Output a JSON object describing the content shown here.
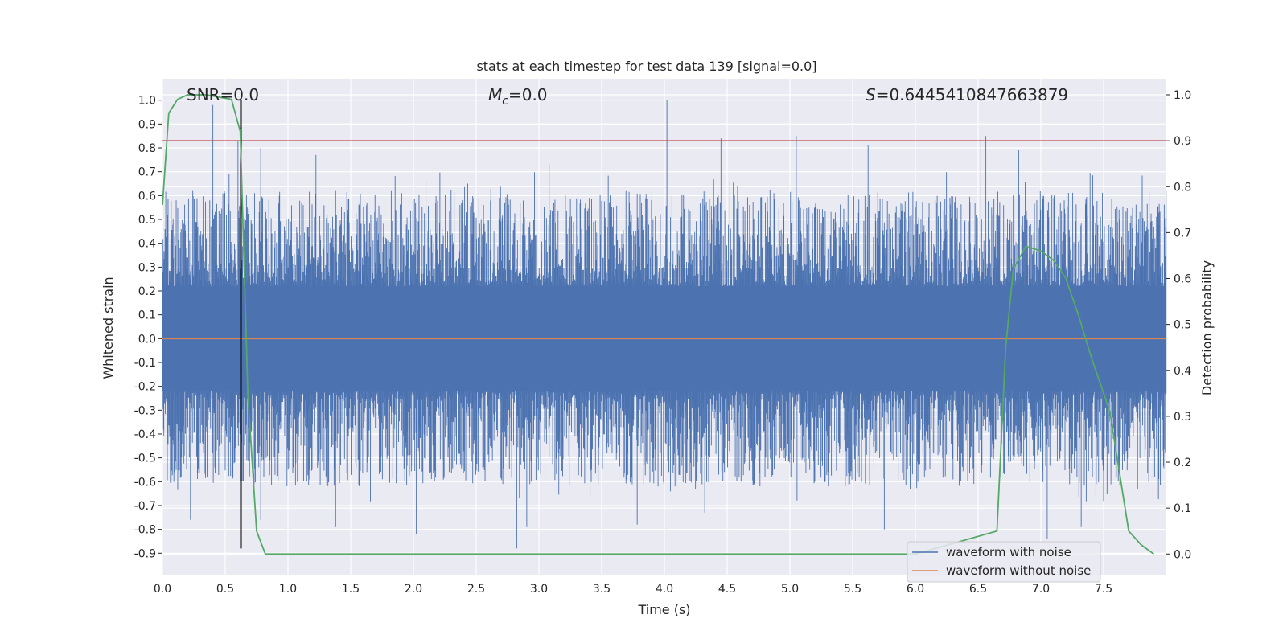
{
  "chart_data": {
    "type": "line",
    "title": "stats at each timestep for test data 139 [signal=0.0]",
    "xlabel": "Time (s)",
    "ylabel_left": "Whitened strain",
    "ylabel_right": "Detection probability",
    "xlim": [
      0.0,
      8.0
    ],
    "ylim_left": [
      -0.99,
      1.09
    ],
    "ylim_right": [
      -0.045,
      1.035
    ],
    "x_ticks": [
      "0.0",
      "0.5",
      "1.0",
      "1.5",
      "2.0",
      "2.5",
      "3.0",
      "3.5",
      "4.0",
      "4.5",
      "5.0",
      "5.5",
      "6.0",
      "6.5",
      "7.0",
      "7.5"
    ],
    "y_ticks_left": [
      "1.0",
      "0.9",
      "0.8",
      "0.7",
      "0.6",
      "0.5",
      "0.4",
      "0.3",
      "0.2",
      "0.1",
      "0.0",
      "-0.1",
      "-0.2",
      "-0.3",
      "-0.4",
      "-0.5",
      "-0.6",
      "-0.7",
      "-0.8",
      "-0.9"
    ],
    "y_ticks_right": [
      "1.0",
      "0.9",
      "0.8",
      "0.7",
      "0.6",
      "0.5",
      "0.4",
      "0.3",
      "0.2",
      "0.1",
      "0.0"
    ],
    "grid": true,
    "legend_position": "bottom-right",
    "annotations": {
      "snr": "SNR=0.0",
      "mc_symbol": "M",
      "mc_sub": "c",
      "mc_value": "=0.0",
      "s_symbol": "S",
      "s_value": "=0.6445410847663879"
    },
    "series": [
      {
        "name": "waveform with noise",
        "color": "#4c72b0",
        "axis": "left",
        "envelope_peaks": [
          {
            "x": 0.4,
            "y": 0.98
          },
          {
            "x": 0.6,
            "y": 0.83
          },
          {
            "x": 0.78,
            "y": 0.8
          },
          {
            "x": 1.22,
            "y": 0.77
          },
          {
            "x": 2.43,
            "y": 0.65
          },
          {
            "x": 3.08,
            "y": 0.73
          },
          {
            "x": 4.02,
            "y": 1.0
          },
          {
            "x": 4.45,
            "y": 0.84
          },
          {
            "x": 5.05,
            "y": 0.85
          },
          {
            "x": 5.62,
            "y": 0.81
          },
          {
            "x": 6.52,
            "y": 0.84
          },
          {
            "x": 6.56,
            "y": 0.85
          },
          {
            "x": 6.82,
            "y": 0.79
          }
        ],
        "envelope_troughs": [
          {
            "x": 0.22,
            "y": -0.76
          },
          {
            "x": 0.78,
            "y": -0.76
          },
          {
            "x": 1.38,
            "y": -0.79
          },
          {
            "x": 2.02,
            "y": -0.82
          },
          {
            "x": 2.82,
            "y": -0.88
          },
          {
            "x": 2.9,
            "y": -0.79
          },
          {
            "x": 3.78,
            "y": -0.78
          },
          {
            "x": 4.32,
            "y": -0.73
          },
          {
            "x": 5.75,
            "y": -0.8
          },
          {
            "x": 7.05,
            "y": -0.84
          },
          {
            "x": 7.32,
            "y": -0.79
          }
        ],
        "typical_range": [
          -0.5,
          0.5
        ]
      },
      {
        "name": "waveform without noise",
        "color": "#dd8452",
        "axis": "left",
        "x": [
          0.0,
          8.0
        ],
        "y": [
          0.0,
          0.0
        ]
      },
      {
        "name": "detection probability",
        "color": "#55a868",
        "axis": "right",
        "x": [
          0.0,
          0.05,
          0.12,
          0.2,
          0.35,
          0.55,
          0.62,
          0.68,
          0.75,
          0.82,
          0.9,
          1.5,
          6.0,
          6.65,
          6.72,
          6.78,
          6.88,
          7.0,
          7.1,
          7.2,
          7.3,
          7.4,
          7.55,
          7.7,
          7.8,
          7.9
        ],
        "y": [
          0.76,
          0.96,
          0.99,
          1.0,
          1.0,
          0.99,
          0.92,
          0.35,
          0.05,
          0.0,
          0.0,
          0.0,
          0.0,
          0.05,
          0.45,
          0.62,
          0.67,
          0.66,
          0.64,
          0.6,
          0.52,
          0.43,
          0.31,
          0.05,
          0.02,
          0.0
        ]
      }
    ],
    "reference_lines": {
      "threshold": {
        "axis": "right",
        "value": 0.9,
        "color": "#c44e52"
      },
      "marker_time": {
        "x": 0.625,
        "y_from": -0.88,
        "y_to": 1.0,
        "color": "#000000"
      }
    }
  }
}
